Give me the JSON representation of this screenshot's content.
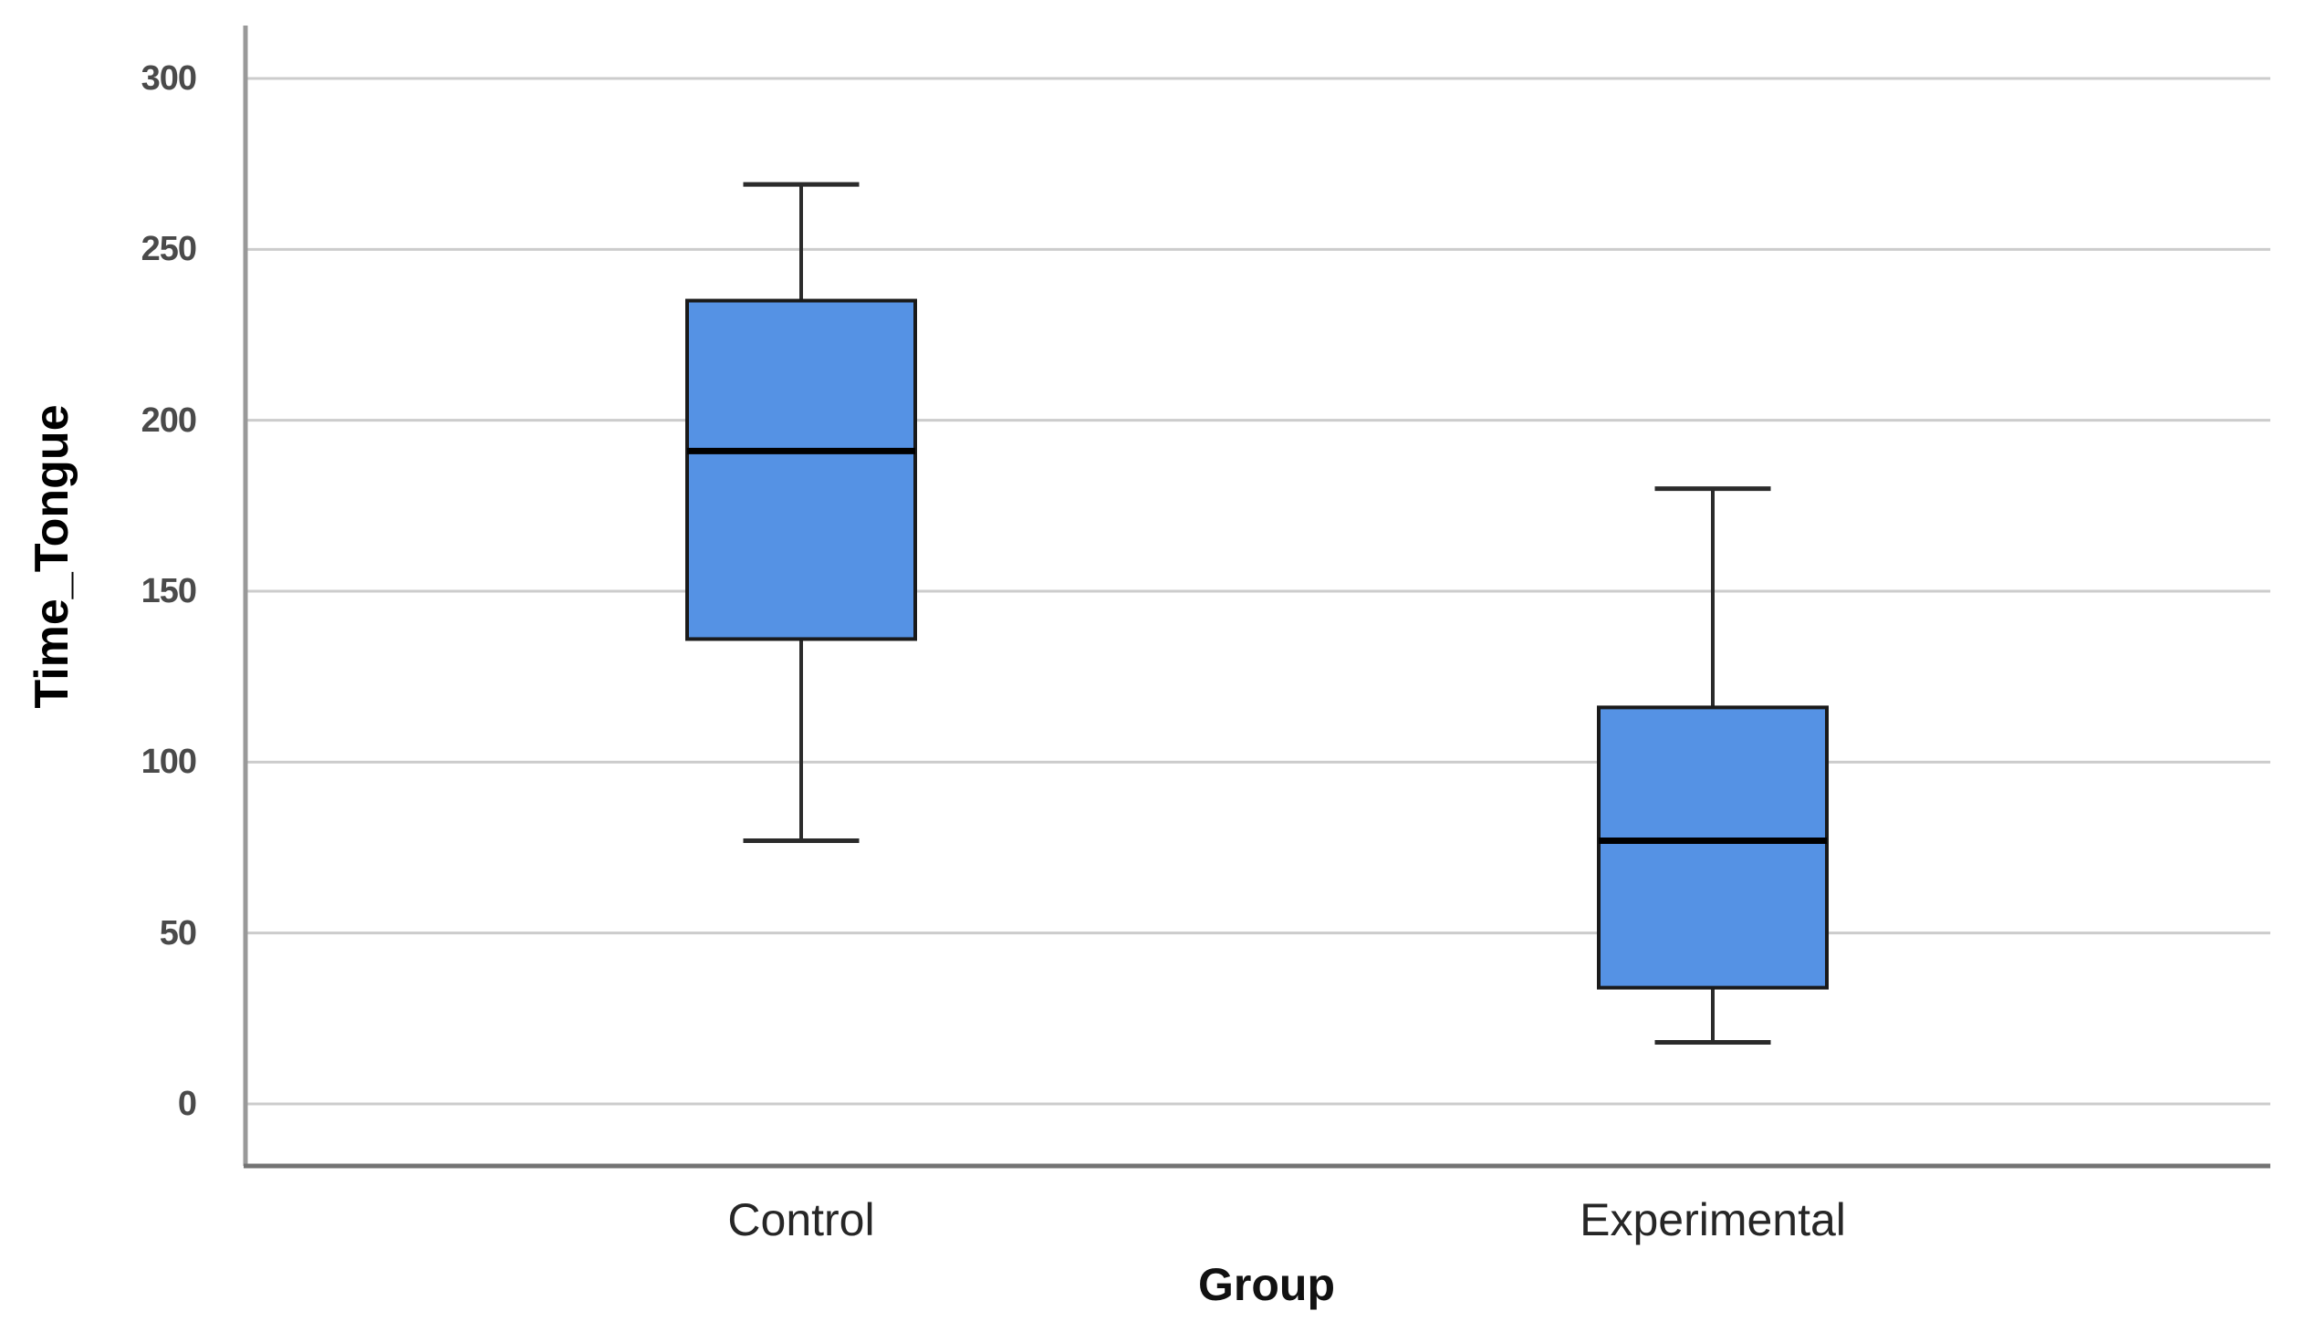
{
  "figure": {
    "background": "#ffffff"
  },
  "chart_data": {
    "type": "boxplot",
    "title": "",
    "xlabel": "Group",
    "ylabel": "Time_Tongue",
    "categories": [
      "Control",
      "Experimental"
    ],
    "series": [
      {
        "name": "Control",
        "whisker_low": 77,
        "q1": 136,
        "median": 191,
        "q3": 235,
        "whisker_high": 269
      },
      {
        "name": "Experimental",
        "whisker_low": 18,
        "q1": 34,
        "median": 77,
        "q3": 116,
        "whisker_high": 180
      }
    ],
    "ylim": [
      0,
      300
    ],
    "yticks": [
      0,
      50,
      100,
      150,
      200,
      250,
      300
    ],
    "grid": "horizontal",
    "legend": "none",
    "outliers": [],
    "colors": {
      "box_fill": "#5592e4",
      "box_border": "#1a1a1a",
      "median": "#000000",
      "whisker": "#2b2b2b",
      "gridline": "#cccccc",
      "y_axis_line": "#999999",
      "x_axis_line": "#737373",
      "tick_label": "#4a4a4a",
      "category_label": "#262626",
      "axis_title": "#000000"
    }
  }
}
